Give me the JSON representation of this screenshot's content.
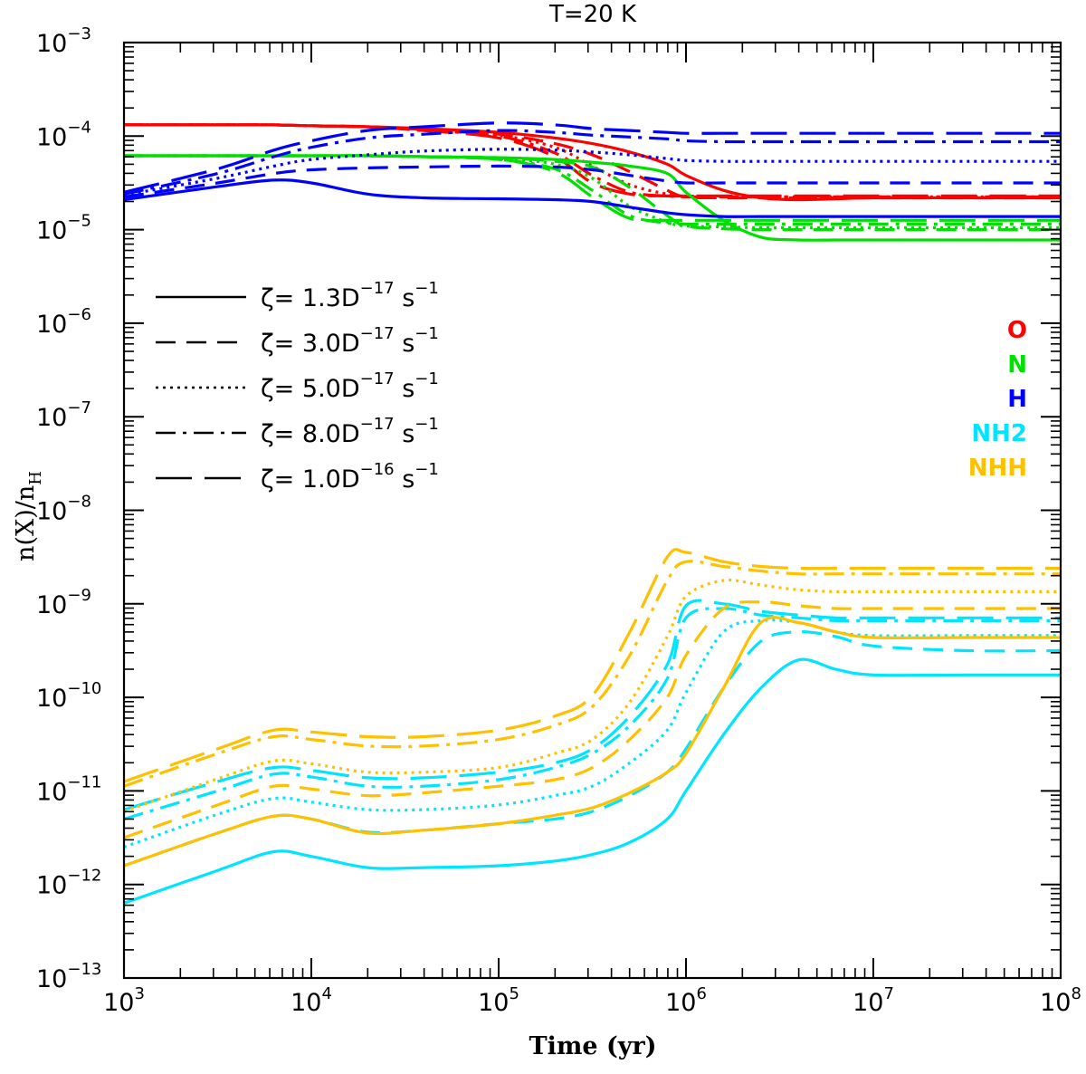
{
  "chart_data": {
    "type": "line",
    "title": "T=20 K",
    "xlabel": "Time (yr)",
    "ylabel": {
      "main": "n(X)/n",
      "sub": "H"
    },
    "xscale": "log",
    "yscale": "log",
    "xlim_exp": [
      3,
      8
    ],
    "ylim_exp": [
      -13,
      -3
    ],
    "x_ticks": [
      {
        "base": "10",
        "exp": "3"
      },
      {
        "base": "10",
        "exp": "4"
      },
      {
        "base": "10",
        "exp": "5"
      },
      {
        "base": "10",
        "exp": "6"
      },
      {
        "base": "10",
        "exp": "7"
      },
      {
        "base": "10",
        "exp": "8"
      }
    ],
    "y_ticks": [
      {
        "base": "10",
        "exp": "−3"
      },
      {
        "base": "10",
        "exp": "−4"
      },
      {
        "base": "10",
        "exp": "−5"
      },
      {
        "base": "10",
        "exp": "−6"
      },
      {
        "base": "10",
        "exp": "−7"
      },
      {
        "base": "10",
        "exp": "−8"
      },
      {
        "base": "10",
        "exp": "−9"
      },
      {
        "base": "10",
        "exp": "−10"
      },
      {
        "base": "10",
        "exp": "−11"
      },
      {
        "base": "10",
        "exp": "−12"
      },
      {
        "base": "10",
        "exp": "−13"
      }
    ],
    "legend_styles": [
      {
        "label": "ζ=  1.3D",
        "exp": "−17",
        "unit": "s",
        "unit_exp": "−1",
        "dash": "solid"
      },
      {
        "label": "ζ=  3.0D",
        "exp": "−17",
        "unit": "s",
        "unit_exp": "−1",
        "dash": "dashed"
      },
      {
        "label": "ζ=  5.0D",
        "exp": "−17",
        "unit": "s",
        "unit_exp": "−1",
        "dash": "dotted"
      },
      {
        "label": "ζ=  8.0D",
        "exp": "−17",
        "unit": "s",
        "unit_exp": "−1",
        "dash": "dashdot"
      },
      {
        "label": "ζ=  1.0D",
        "exp": "−16",
        "unit": "s",
        "unit_exp": "−1",
        "dash": "longdash"
      }
    ],
    "species_legend": [
      {
        "name": "O",
        "color": "#ff0000"
      },
      {
        "name": "N",
        "color": "#00e000"
      },
      {
        "name": "H",
        "color": "#0000ff"
      },
      {
        "name": "NH2",
        "color": "#00e5ff"
      },
      {
        "name": "NHH",
        "color": "#ffc000"
      }
    ],
    "series_x_log10": [
      3.0,
      3.5,
      3.8,
      4.0,
      4.3,
      4.6,
      5.0,
      5.3,
      5.5,
      5.7,
      5.9,
      6.0,
      6.2,
      6.4,
      6.6,
      6.8,
      7.0,
      7.5,
      8.0
    ],
    "series": [
      {
        "species": "O",
        "zeta": "1.3D-17",
        "dash": "solid",
        "y_log10": [
          -3.88,
          -3.88,
          -3.88,
          -3.89,
          -3.9,
          -3.92,
          -3.96,
          -4.02,
          -4.08,
          -4.17,
          -4.3,
          -4.42,
          -4.58,
          -4.66,
          -4.68,
          -4.67,
          -4.66,
          -4.66,
          -4.66
        ]
      },
      {
        "species": "O",
        "zeta": "3.0D-17",
        "dash": "dashed",
        "y_log10": [
          -3.88,
          -3.88,
          -3.88,
          -3.89,
          -3.9,
          -3.93,
          -3.98,
          -4.08,
          -4.2,
          -4.38,
          -4.58,
          -4.65,
          -4.66,
          -4.66,
          -4.66,
          -4.66,
          -4.66,
          -4.66,
          -4.66
        ]
      },
      {
        "species": "O",
        "zeta": "5.0D-17",
        "dash": "dotted",
        "y_log10": [
          -3.88,
          -3.88,
          -3.88,
          -3.89,
          -3.9,
          -3.93,
          -3.99,
          -4.12,
          -4.32,
          -4.52,
          -4.62,
          -4.64,
          -4.65,
          -4.65,
          -4.65,
          -4.65,
          -4.65,
          -4.65,
          -4.65
        ]
      },
      {
        "species": "O",
        "zeta": "8.0D-17",
        "dash": "dashdot",
        "y_log10": [
          -3.88,
          -3.88,
          -3.88,
          -3.89,
          -3.9,
          -3.94,
          -4.0,
          -4.18,
          -4.42,
          -4.6,
          -4.64,
          -4.65,
          -4.65,
          -4.65,
          -4.65,
          -4.65,
          -4.65,
          -4.65,
          -4.65
        ]
      },
      {
        "species": "O",
        "zeta": "1.0D-16",
        "dash": "longdash",
        "y_log10": [
          -3.88,
          -3.88,
          -3.88,
          -3.89,
          -3.9,
          -3.94,
          -4.02,
          -4.22,
          -4.5,
          -4.62,
          -4.64,
          -4.64,
          -4.64,
          -4.64,
          -4.64,
          -4.64,
          -4.64,
          -4.64,
          -4.64
        ]
      },
      {
        "species": "N",
        "zeta": "1.3D-17",
        "dash": "solid",
        "y_log10": [
          -4.21,
          -4.21,
          -4.21,
          -4.21,
          -4.21,
          -4.22,
          -4.23,
          -4.25,
          -4.28,
          -4.32,
          -4.4,
          -4.6,
          -4.9,
          -5.08,
          -5.11,
          -5.11,
          -5.11,
          -5.11,
          -5.11
        ]
      },
      {
        "species": "N",
        "zeta": "3.0D-17",
        "dash": "dashed",
        "y_log10": [
          -4.21,
          -4.21,
          -4.21,
          -4.21,
          -4.21,
          -4.22,
          -4.23,
          -4.27,
          -4.33,
          -4.55,
          -4.85,
          -4.96,
          -4.99,
          -5.0,
          -5.0,
          -5.0,
          -5.0,
          -5.0,
          -5.0
        ]
      },
      {
        "species": "N",
        "zeta": "5.0D-17",
        "dash": "dotted",
        "y_log10": [
          -4.21,
          -4.21,
          -4.21,
          -4.21,
          -4.21,
          -4.22,
          -4.24,
          -4.3,
          -4.45,
          -4.75,
          -4.92,
          -4.96,
          -4.97,
          -4.98,
          -4.98,
          -4.98,
          -4.98,
          -4.98,
          -4.98
        ]
      },
      {
        "species": "N",
        "zeta": "8.0D-17",
        "dash": "dashdot",
        "y_log10": [
          -4.21,
          -4.21,
          -4.21,
          -4.21,
          -4.21,
          -4.22,
          -4.25,
          -4.35,
          -4.58,
          -4.85,
          -4.93,
          -4.94,
          -4.94,
          -4.94,
          -4.94,
          -4.94,
          -4.94,
          -4.94,
          -4.94
        ]
      },
      {
        "species": "N",
        "zeta": "1.0D-16",
        "dash": "longdash",
        "y_log10": [
          -4.21,
          -4.21,
          -4.21,
          -4.21,
          -4.21,
          -4.22,
          -4.25,
          -4.38,
          -4.65,
          -4.88,
          -4.9,
          -4.9,
          -4.9,
          -4.9,
          -4.9,
          -4.9,
          -4.9,
          -4.9,
          -4.9
        ]
      },
      {
        "species": "H",
        "zeta": "1.3D-17",
        "dash": "solid",
        "y_log10": [
          -4.68,
          -4.54,
          -4.47,
          -4.5,
          -4.62,
          -4.66,
          -4.67,
          -4.68,
          -4.7,
          -4.76,
          -4.82,
          -4.84,
          -4.86,
          -4.86,
          -4.86,
          -4.86,
          -4.86,
          -4.86,
          -4.86
        ]
      },
      {
        "species": "H",
        "zeta": "3.0D-17",
        "dash": "dashed",
        "y_log10": [
          -4.65,
          -4.5,
          -4.4,
          -4.36,
          -4.34,
          -4.33,
          -4.32,
          -4.33,
          -4.36,
          -4.42,
          -4.48,
          -4.5,
          -4.5,
          -4.5,
          -4.5,
          -4.5,
          -4.5,
          -4.5,
          -4.5
        ]
      },
      {
        "species": "H",
        "zeta": "5.0D-17",
        "dash": "dotted",
        "y_log10": [
          -4.63,
          -4.45,
          -4.32,
          -4.25,
          -4.2,
          -4.16,
          -4.14,
          -4.15,
          -4.17,
          -4.2,
          -4.24,
          -4.26,
          -4.27,
          -4.27,
          -4.27,
          -4.27,
          -4.27,
          -4.27,
          -4.27
        ]
      },
      {
        "species": "H",
        "zeta": "8.0D-17",
        "dash": "dashdot",
        "y_log10": [
          -4.62,
          -4.4,
          -4.22,
          -4.12,
          -4.02,
          -3.98,
          -3.94,
          -3.96,
          -3.99,
          -4.01,
          -4.03,
          -4.05,
          -4.06,
          -4.06,
          -4.06,
          -4.06,
          -4.06,
          -4.06,
          -4.06
        ]
      },
      {
        "species": "H",
        "zeta": "1.0D-16",
        "dash": "longdash",
        "y_log10": [
          -4.6,
          -4.35,
          -4.15,
          -4.05,
          -3.94,
          -3.9,
          -3.86,
          -3.88,
          -3.92,
          -3.94,
          -3.96,
          -3.97,
          -3.97,
          -3.97,
          -3.97,
          -3.97,
          -3.97,
          -3.97,
          -3.97
        ]
      },
      {
        "species": "NH2",
        "zeta": "1.3D-17",
        "dash": "solid",
        "y_log10": [
          -12.2,
          -11.85,
          -11.65,
          -11.7,
          -11.82,
          -11.82,
          -11.8,
          -11.75,
          -11.68,
          -11.55,
          -11.3,
          -11.0,
          -10.4,
          -9.9,
          -9.6,
          -9.7,
          -9.76,
          -9.76,
          -9.76
        ]
      },
      {
        "species": "NH2",
        "zeta": "3.0D-17",
        "dash": "dashed",
        "y_log10": [
          -11.8,
          -11.45,
          -11.27,
          -11.3,
          -11.44,
          -11.42,
          -11.35,
          -11.3,
          -11.22,
          -11.05,
          -10.8,
          -10.55,
          -9.9,
          -9.4,
          -9.3,
          -9.35,
          -9.45,
          -9.5,
          -9.5
        ]
      },
      {
        "species": "NH2",
        "zeta": "5.0D-17",
        "dash": "dotted",
        "y_log10": [
          -11.6,
          -11.25,
          -11.08,
          -11.12,
          -11.2,
          -11.2,
          -11.15,
          -11.05,
          -10.95,
          -10.7,
          -10.35,
          -9.95,
          -9.3,
          -9.18,
          -9.2,
          -9.3,
          -9.34,
          -9.34,
          -9.34
        ]
      },
      {
        "species": "NH2",
        "zeta": "8.0D-17",
        "dash": "dashdot",
        "y_log10": [
          -11.3,
          -11.0,
          -10.82,
          -10.85,
          -10.95,
          -10.95,
          -10.88,
          -10.75,
          -10.6,
          -10.3,
          -9.8,
          -9.15,
          -9.05,
          -9.12,
          -9.15,
          -9.18,
          -9.18,
          -9.18,
          -9.18
        ]
      },
      {
        "species": "NH2",
        "zeta": "1.0D-16",
        "dash": "longdash",
        "y_log10": [
          -11.2,
          -10.9,
          -10.75,
          -10.78,
          -10.86,
          -10.86,
          -10.8,
          -10.7,
          -10.55,
          -10.2,
          -9.65,
          -9.02,
          -9.0,
          -9.08,
          -9.12,
          -9.15,
          -9.15,
          -9.15,
          -9.15
        ]
      },
      {
        "species": "NHH",
        "zeta": "1.3D-17",
        "dash": "solid",
        "y_log10": [
          -11.8,
          -11.45,
          -11.27,
          -11.3,
          -11.45,
          -11.42,
          -11.35,
          -11.26,
          -11.18,
          -11.02,
          -10.8,
          -10.6,
          -9.9,
          -9.2,
          -9.2,
          -9.3,
          -9.36,
          -9.36,
          -9.36
        ]
      },
      {
        "species": "NHH",
        "zeta": "3.0D-17",
        "dash": "dashed",
        "y_log10": [
          -11.5,
          -11.15,
          -10.95,
          -10.98,
          -11.05,
          -11.02,
          -10.95,
          -10.88,
          -10.75,
          -10.45,
          -10.0,
          -9.55,
          -9.05,
          -8.98,
          -9.02,
          -9.05,
          -9.05,
          -9.05,
          -9.05
        ]
      },
      {
        "species": "NHH",
        "zeta": "5.0D-17",
        "dash": "dotted",
        "y_log10": [
          -11.22,
          -10.87,
          -10.68,
          -10.71,
          -10.8,
          -10.8,
          -10.75,
          -10.6,
          -10.45,
          -10.05,
          -9.35,
          -8.92,
          -8.75,
          -8.8,
          -8.85,
          -8.87,
          -8.87,
          -8.87,
          -8.87
        ]
      },
      {
        "species": "NHH",
        "zeta": "8.0D-17",
        "dash": "dashdot",
        "y_log10": [
          -10.95,
          -10.6,
          -10.42,
          -10.45,
          -10.52,
          -10.52,
          -10.45,
          -10.3,
          -10.1,
          -9.55,
          -8.75,
          -8.55,
          -8.6,
          -8.65,
          -8.68,
          -8.68,
          -8.68,
          -8.68,
          -8.68
        ]
      },
      {
        "species": "NHH",
        "zeta": "1.0D-16",
        "dash": "longdash",
        "y_log10": [
          -10.9,
          -10.55,
          -10.35,
          -10.37,
          -10.42,
          -10.42,
          -10.35,
          -10.2,
          -9.98,
          -9.3,
          -8.5,
          -8.45,
          -8.55,
          -8.6,
          -8.62,
          -8.62,
          -8.62,
          -8.62,
          -8.62
        ]
      }
    ]
  }
}
